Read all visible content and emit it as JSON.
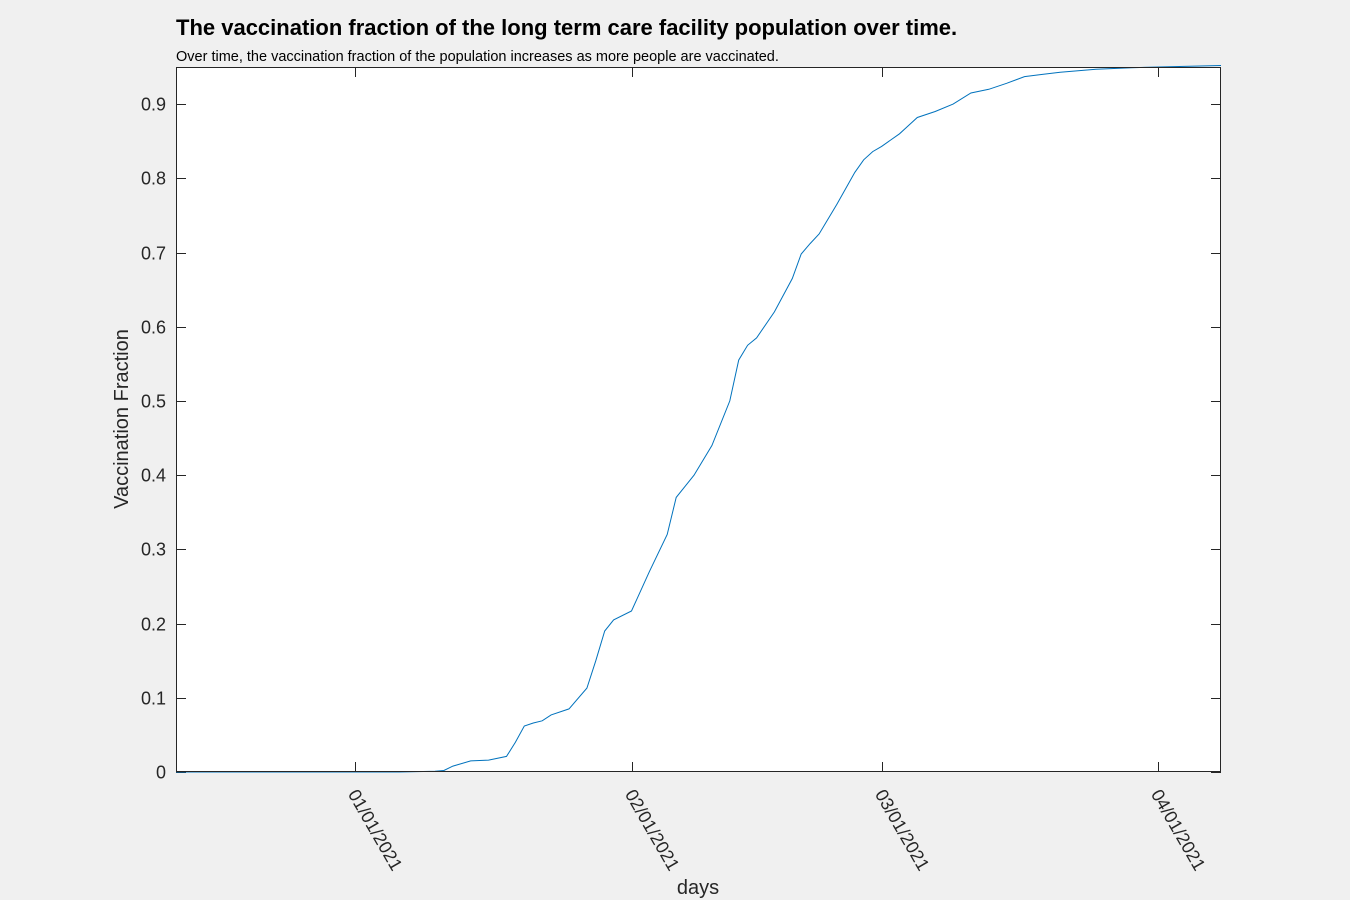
{
  "chart_data": {
    "type": "line",
    "title": "The vaccination fraction of the long term care facility population over time.",
    "subtitle": "Over time, the vaccination fraction of the population increases as more people are vaccinated.",
    "xlabel": "days",
    "ylabel": "Vaccination Fraction",
    "x_tick_labels": [
      "01/01/2021",
      "02/01/2021",
      "03/01/2021",
      "04/01/2021"
    ],
    "x_tick_dates": [
      "2021-01-01",
      "2021-02-01",
      "2021-03-01",
      "2021-04-01"
    ],
    "xlim": [
      "2020-12-12",
      "2021-04-08"
    ],
    "ylim": [
      0,
      0.95
    ],
    "y_ticks": [
      0,
      0.1,
      0.2,
      0.3,
      0.4,
      0.5,
      0.6,
      0.7,
      0.8,
      0.9
    ],
    "y_tick_labels": [
      "0",
      "0.1",
      "0.2",
      "0.3",
      "0.4",
      "0.5",
      "0.6",
      "0.7",
      "0.8",
      "0.9"
    ],
    "grid": false,
    "color": "#0072bd",
    "series": [
      {
        "x": [
          "2020-12-12",
          "2021-01-01",
          "2021-01-06",
          "2021-01-10",
          "2021-01-11",
          "2021-01-12",
          "2021-01-14",
          "2021-01-16",
          "2021-01-18",
          "2021-01-19",
          "2021-01-20",
          "2021-01-21",
          "2021-01-22",
          "2021-01-23",
          "2021-01-25",
          "2021-01-27",
          "2021-01-28",
          "2021-01-29",
          "2021-01-30",
          "2021-02-01",
          "2021-02-03",
          "2021-02-05",
          "2021-02-06",
          "2021-02-07",
          "2021-02-08",
          "2021-02-10",
          "2021-02-12",
          "2021-02-13",
          "2021-02-14",
          "2021-02-15",
          "2021-02-17",
          "2021-02-19",
          "2021-02-20",
          "2021-02-21",
          "2021-02-22",
          "2021-02-24",
          "2021-02-26",
          "2021-02-27",
          "2021-02-28",
          "2021-03-01",
          "2021-03-03",
          "2021-03-05",
          "2021-03-07",
          "2021-03-09",
          "2021-03-11",
          "2021-03-13",
          "2021-03-15",
          "2021-03-17",
          "2021-03-19",
          "2021-03-21",
          "2021-03-25",
          "2021-03-29",
          "2021-04-01",
          "2021-04-08"
        ],
        "values": [
          0,
          0,
          0,
          0.001,
          0.002,
          0.008,
          0.015,
          0.016,
          0.021,
          0.04,
          0.062,
          0.066,
          0.069,
          0.077,
          0.085,
          0.113,
          0.15,
          0.19,
          0.205,
          0.217,
          0.27,
          0.32,
          0.37,
          0.385,
          0.4,
          0.44,
          0.5,
          0.555,
          0.575,
          0.585,
          0.62,
          0.665,
          0.698,
          0.712,
          0.725,
          0.765,
          0.808,
          0.825,
          0.836,
          0.843,
          0.86,
          0.882,
          0.89,
          0.9,
          0.915,
          0.92,
          0.928,
          0.937,
          0.94,
          0.943,
          0.947,
          0.949,
          0.95,
          0.952
        ]
      }
    ]
  }
}
